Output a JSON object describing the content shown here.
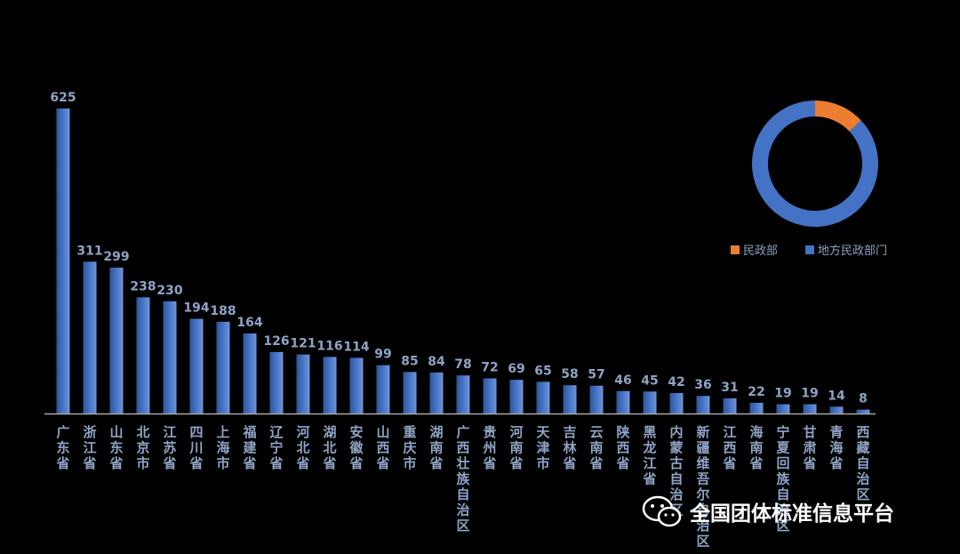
{
  "chart_data": [
    {
      "type": "bar",
      "categories": [
        "广东省",
        "浙江省",
        "山东省",
        "北京市",
        "江苏省",
        "四川省",
        "上海市",
        "福建省",
        "辽宁省",
        "河北省",
        "湖北省",
        "安徽省",
        "山西省",
        "重庆市",
        "湖南省",
        "广西壮族自治区",
        "贵州省",
        "河南省",
        "天津市",
        "吉林省",
        "云南省",
        "陕西省",
        "黑龙江省",
        "内蒙古自治区",
        "新疆维吾尔自治区",
        "江西省",
        "海南省",
        "宁夏回族自治区",
        "甘肃省",
        "青海省",
        "西藏自治区"
      ],
      "values": [
        625,
        311,
        299,
        238,
        230,
        194,
        188,
        164,
        126,
        121,
        116,
        114,
        99,
        85,
        84,
        78,
        72,
        69,
        65,
        58,
        57,
        46,
        45,
        42,
        36,
        31,
        22,
        19,
        19,
        14,
        8
      ],
      "ylim": [
        0,
        625
      ],
      "bar_color": "#4472c4",
      "label_color": "#8fa3c4"
    },
    {
      "type": "pie",
      "style": "donut",
      "labels": [
        "民政部",
        "地方民政部门"
      ],
      "values": [
        13,
        87
      ],
      "colors": [
        "#ed7d31",
        "#4472c4"
      ],
      "legend_position": "bottom"
    }
  ],
  "watermark": {
    "text": "全国团体标准信息平台",
    "icon": "wechat-icon"
  }
}
